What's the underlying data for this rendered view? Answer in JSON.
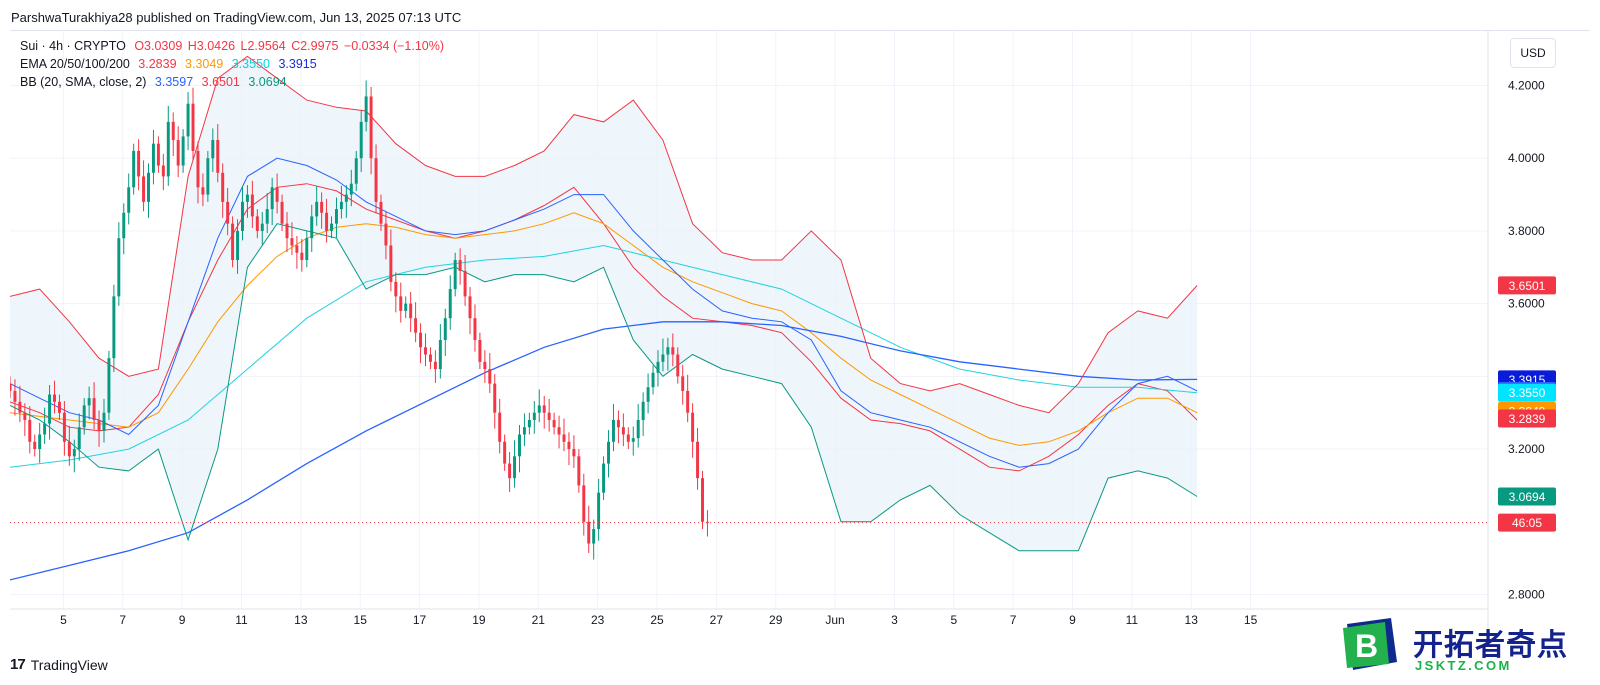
{
  "publisher": "ParshwaTurakhiya28 published on TradingView.com, Jun 13, 2025 07:13 UTC",
  "legend": {
    "symbol": "Sui · 4h · CRYPTO",
    "open": "O3.0309",
    "high": "H3.0426",
    "low": "L2.9564",
    "close": "C2.9975",
    "change": "−0.0334 (−1.10%)",
    "ema_label": "EMA 20/50/100/200",
    "ema20": "3.2839",
    "ema50": "3.3049",
    "ema100": "3.3550",
    "ema200": "3.3915",
    "bb_label": "BB (20, SMA, close, 2)",
    "bb_mid": "3.3597",
    "bb_upper": "3.6501",
    "bb_lower": "3.0694"
  },
  "currency_button": "USD",
  "brand": "TradingView",
  "watermark": {
    "title": "开拓者奇点",
    "url": "JSKTZ.COM"
  },
  "colors": {
    "up": "#089981",
    "down": "#f23645",
    "ema20": "#f23645",
    "ema50": "#ff9800",
    "ema100": "#22d3e0",
    "ema200": "#2962ff",
    "bb_upper": "#f23645",
    "bb_lower": "#089981",
    "bb_mid": "#2962ff",
    "bb_fill": "#eaf2fa"
  },
  "price_tags": [
    {
      "text": "3.6501",
      "value": 3.6501,
      "color": "#f23645"
    },
    {
      "text": "3.3915",
      "value": 3.3915,
      "color": "#0a1bd9"
    },
    {
      "text": "3.3597",
      "value": 3.3597,
      "color": "#2962ff"
    },
    {
      "text": "3.3550",
      "value": 3.355,
      "color": "#00e5ff"
    },
    {
      "text": "3.3049",
      "value": 3.3049,
      "color": "#ff9800"
    },
    {
      "text": "3.2839",
      "value": 3.2839,
      "color": "#f23645"
    },
    {
      "text": "3.0694",
      "value": 3.0694,
      "color": "#089981"
    },
    {
      "text": "46:05",
      "value": 2.9975,
      "color": "#f23645"
    }
  ],
  "chart_data": {
    "type": "candlestick",
    "title": "Sui · 4h · CRYPTO",
    "ylim": [
      2.76,
      4.35
    ],
    "y_ticks": [
      "2.8000",
      "3.2000",
      "3.4000",
      "3.6000",
      "3.8000",
      "4.0000",
      "4.2000"
    ],
    "x_ticks": [
      "5",
      "7",
      "9",
      "11",
      "13",
      "15",
      "17",
      "19",
      "21",
      "23",
      "25",
      "27",
      "29",
      "Jun",
      "3",
      "5",
      "7",
      "9",
      "11",
      "13",
      "15"
    ],
    "x_tick_day": [
      5,
      7,
      9,
      11,
      13,
      15,
      17,
      19,
      21,
      23,
      25,
      27,
      29,
      31,
      33,
      35,
      37,
      39,
      41,
      43,
      45
    ],
    "x_range_days": [
      3.2,
      53.0
    ],
    "candles_per_day": 6,
    "first_candle_day": 3.2,
    "closes": [
      3.36,
      3.33,
      3.3,
      3.28,
      3.22,
      3.2,
      3.24,
      3.27,
      3.35,
      3.33,
      3.3,
      3.22,
      3.18,
      3.2,
      3.26,
      3.32,
      3.34,
      3.28,
      3.25,
      3.3,
      3.45,
      3.62,
      3.78,
      3.85,
      3.92,
      4.02,
      3.95,
      3.88,
      3.96,
      4.04,
      3.98,
      3.95,
      4.1,
      4.05,
      3.98,
      4.06,
      4.15,
      4.02,
      3.92,
      3.9,
      4.0,
      4.05,
      3.96,
      3.88,
      3.82,
      3.72,
      3.8,
      3.88,
      3.9,
      3.84,
      3.8,
      3.82,
      3.86,
      3.92,
      3.88,
      3.82,
      3.78,
      3.76,
      3.74,
      3.72,
      3.78,
      3.84,
      3.88,
      3.85,
      3.8,
      3.82,
      3.86,
      3.88,
      3.9,
      3.93,
      4.0,
      4.1,
      4.17,
      4.0,
      3.88,
      3.82,
      3.76,
      3.66,
      3.62,
      3.58,
      3.6,
      3.56,
      3.52,
      3.48,
      3.46,
      3.44,
      3.42,
      3.5,
      3.56,
      3.64,
      3.72,
      3.69,
      3.62,
      3.56,
      3.5,
      3.44,
      3.42,
      3.38,
      3.3,
      3.22,
      3.16,
      3.12,
      3.18,
      3.24,
      3.26,
      3.28,
      3.3,
      3.32,
      3.3,
      3.28,
      3.26,
      3.24,
      3.22,
      3.2,
      3.18,
      3.1,
      3.0,
      2.94,
      2.98,
      3.08,
      3.16,
      3.22,
      3.28,
      3.26,
      3.24,
      3.22,
      3.23,
      3.28,
      3.33,
      3.37,
      3.41,
      3.44,
      3.46,
      3.48,
      3.46,
      3.4,
      3.36,
      3.3,
      3.22,
      3.12,
      3.0,
      2.9975
    ],
    "series": [
      {
        "name": "EMA 20",
        "color": "#f23645",
        "points": [
          [
            3.2,
            3.33
          ],
          [
            4.2,
            3.3
          ],
          [
            5.2,
            3.26
          ],
          [
            6.2,
            3.25
          ],
          [
            7.2,
            3.26
          ],
          [
            8.2,
            3.35
          ],
          [
            9.2,
            3.55
          ],
          [
            10.2,
            3.72
          ],
          [
            11.2,
            3.86
          ],
          [
            12.2,
            3.92
          ],
          [
            13.2,
            3.93
          ],
          [
            14.2,
            3.91
          ],
          [
            15.2,
            3.86
          ],
          [
            16.2,
            3.83
          ],
          [
            17.2,
            3.8
          ],
          [
            18.2,
            3.78
          ],
          [
            19.2,
            3.8
          ],
          [
            20.2,
            3.83
          ],
          [
            21.2,
            3.87
          ],
          [
            22.2,
            3.92
          ],
          [
            23.2,
            3.82
          ],
          [
            24.2,
            3.7
          ],
          [
            25.2,
            3.62
          ],
          [
            26.2,
            3.56
          ],
          [
            27.2,
            3.55
          ],
          [
            28.2,
            3.54
          ],
          [
            29.2,
            3.52
          ],
          [
            30.2,
            3.44
          ],
          [
            31.2,
            3.34
          ],
          [
            32.2,
            3.28
          ],
          [
            33.2,
            3.27
          ],
          [
            34.2,
            3.25
          ],
          [
            35.2,
            3.2
          ],
          [
            36.2,
            3.15
          ],
          [
            37.2,
            3.14
          ],
          [
            38.2,
            3.18
          ],
          [
            39.2,
            3.24
          ],
          [
            40.2,
            3.32
          ],
          [
            41.2,
            3.38
          ],
          [
            42.2,
            3.36
          ],
          [
            43.2,
            3.28
          ]
        ]
      },
      {
        "name": "EMA 50",
        "color": "#ff9800",
        "points": [
          [
            3.2,
            3.3
          ],
          [
            5.2,
            3.28
          ],
          [
            7.2,
            3.26
          ],
          [
            8.2,
            3.3
          ],
          [
            9.2,
            3.42
          ],
          [
            10.2,
            3.55
          ],
          [
            11.2,
            3.65
          ],
          [
            12.2,
            3.73
          ],
          [
            13.2,
            3.78
          ],
          [
            14.2,
            3.81
          ],
          [
            15.2,
            3.82
          ],
          [
            16.2,
            3.81
          ],
          [
            17.2,
            3.79
          ],
          [
            18.2,
            3.78
          ],
          [
            19.2,
            3.79
          ],
          [
            20.2,
            3.8
          ],
          [
            21.2,
            3.82
          ],
          [
            22.2,
            3.85
          ],
          [
            23.2,
            3.82
          ],
          [
            24.2,
            3.76
          ],
          [
            25.2,
            3.7
          ],
          [
            26.2,
            3.66
          ],
          [
            27.2,
            3.63
          ],
          [
            28.2,
            3.6
          ],
          [
            29.2,
            3.58
          ],
          [
            30.2,
            3.52
          ],
          [
            31.2,
            3.45
          ],
          [
            32.2,
            3.39
          ],
          [
            33.2,
            3.35
          ],
          [
            34.2,
            3.31
          ],
          [
            35.2,
            3.27
          ],
          [
            36.2,
            3.23
          ],
          [
            37.2,
            3.21
          ],
          [
            38.2,
            3.22
          ],
          [
            39.2,
            3.25
          ],
          [
            40.2,
            3.3
          ],
          [
            41.2,
            3.34
          ],
          [
            42.2,
            3.34
          ],
          [
            43.2,
            3.3
          ]
        ]
      },
      {
        "name": "EMA 100",
        "color": "#22d3e0",
        "points": [
          [
            3.2,
            3.15
          ],
          [
            5.2,
            3.17
          ],
          [
            7.2,
            3.2
          ],
          [
            9.2,
            3.28
          ],
          [
            11.2,
            3.42
          ],
          [
            13.2,
            3.56
          ],
          [
            15.2,
            3.66
          ],
          [
            17.2,
            3.7
          ],
          [
            19.2,
            3.72
          ],
          [
            21.2,
            3.73
          ],
          [
            23.2,
            3.76
          ],
          [
            25.2,
            3.72
          ],
          [
            27.2,
            3.68
          ],
          [
            29.2,
            3.64
          ],
          [
            31.2,
            3.56
          ],
          [
            33.2,
            3.48
          ],
          [
            35.2,
            3.42
          ],
          [
            37.2,
            3.39
          ],
          [
            39.2,
            3.37
          ],
          [
            41.2,
            3.37
          ],
          [
            43.2,
            3.355
          ]
        ]
      },
      {
        "name": "EMA 200",
        "color": "#2962ff",
        "points": [
          [
            3.2,
            2.84
          ],
          [
            5.2,
            2.88
          ],
          [
            7.2,
            2.92
          ],
          [
            9.2,
            2.97
          ],
          [
            11.2,
            3.06
          ],
          [
            13.2,
            3.16
          ],
          [
            15.2,
            3.25
          ],
          [
            17.2,
            3.33
          ],
          [
            19.2,
            3.41
          ],
          [
            21.2,
            3.48
          ],
          [
            23.2,
            3.53
          ],
          [
            25.2,
            3.55
          ],
          [
            27.2,
            3.55
          ],
          [
            29.2,
            3.54
          ],
          [
            31.2,
            3.51
          ],
          [
            33.2,
            3.47
          ],
          [
            35.2,
            3.44
          ],
          [
            37.2,
            3.42
          ],
          [
            39.2,
            3.4
          ],
          [
            41.2,
            3.39
          ],
          [
            43.2,
            3.3915
          ]
        ]
      },
      {
        "name": "BB basis",
        "color": "#2962ff",
        "points": [
          [
            3.2,
            3.38
          ],
          [
            4.2,
            3.34
          ],
          [
            5.2,
            3.3
          ],
          [
            6.2,
            3.28
          ],
          [
            7.2,
            3.24
          ],
          [
            8.2,
            3.32
          ],
          [
            9.2,
            3.55
          ],
          [
            10.2,
            3.78
          ],
          [
            11.2,
            3.95
          ],
          [
            12.2,
            4.0
          ],
          [
            13.2,
            3.98
          ],
          [
            14.2,
            3.94
          ],
          [
            15.2,
            3.88
          ],
          [
            16.2,
            3.84
          ],
          [
            17.2,
            3.8
          ],
          [
            18.2,
            3.79
          ],
          [
            19.2,
            3.8
          ],
          [
            20.2,
            3.83
          ],
          [
            21.2,
            3.86
          ],
          [
            22.2,
            3.9
          ],
          [
            23.2,
            3.9
          ],
          [
            24.2,
            3.8
          ],
          [
            25.2,
            3.72
          ],
          [
            26.2,
            3.64
          ],
          [
            27.2,
            3.58
          ],
          [
            28.2,
            3.56
          ],
          [
            29.2,
            3.55
          ],
          [
            30.2,
            3.5
          ],
          [
            31.2,
            3.36
          ],
          [
            32.2,
            3.3
          ],
          [
            33.2,
            3.28
          ],
          [
            34.2,
            3.26
          ],
          [
            35.2,
            3.22
          ],
          [
            36.2,
            3.18
          ],
          [
            37.2,
            3.15
          ],
          [
            38.2,
            3.16
          ],
          [
            39.2,
            3.2
          ],
          [
            40.2,
            3.3
          ],
          [
            41.2,
            3.38
          ],
          [
            42.2,
            3.4
          ],
          [
            43.2,
            3.36
          ]
        ]
      },
      {
        "name": "BB upper",
        "color": "#f23645",
        "points": [
          [
            3.2,
            3.62
          ],
          [
            4.2,
            3.64
          ],
          [
            5.2,
            3.55
          ],
          [
            6.2,
            3.45
          ],
          [
            7.2,
            3.4
          ],
          [
            8.2,
            3.42
          ],
          [
            9.2,
            3.95
          ],
          [
            10.2,
            4.22
          ],
          [
            11.2,
            4.28
          ],
          [
            12.2,
            4.22
          ],
          [
            13.2,
            4.16
          ],
          [
            14.2,
            4.14
          ],
          [
            15.2,
            4.13
          ],
          [
            16.2,
            4.04
          ],
          [
            17.2,
            3.98
          ],
          [
            18.2,
            3.95
          ],
          [
            19.2,
            3.95
          ],
          [
            20.2,
            3.98
          ],
          [
            21.2,
            4.02
          ],
          [
            22.2,
            4.12
          ],
          [
            23.2,
            4.1
          ],
          [
            24.2,
            4.16
          ],
          [
            25.2,
            4.05
          ],
          [
            26.2,
            3.82
          ],
          [
            27.2,
            3.74
          ],
          [
            28.2,
            3.72
          ],
          [
            29.2,
            3.72
          ],
          [
            30.2,
            3.8
          ],
          [
            31.2,
            3.72
          ],
          [
            32.2,
            3.45
          ],
          [
            33.2,
            3.38
          ],
          [
            34.2,
            3.36
          ],
          [
            35.2,
            3.38
          ],
          [
            36.2,
            3.35
          ],
          [
            37.2,
            3.32
          ],
          [
            38.2,
            3.3
          ],
          [
            39.2,
            3.38
          ],
          [
            40.2,
            3.52
          ],
          [
            41.2,
            3.58
          ],
          [
            42.2,
            3.56
          ],
          [
            43.2,
            3.65
          ]
        ]
      },
      {
        "name": "BB lower",
        "color": "#089981",
        "points": [
          [
            3.2,
            3.32
          ],
          [
            4.2,
            3.28
          ],
          [
            5.2,
            3.22
          ],
          [
            6.2,
            3.15
          ],
          [
            7.2,
            3.14
          ],
          [
            8.2,
            3.2
          ],
          [
            9.2,
            2.95
          ],
          [
            10.2,
            3.2
          ],
          [
            11.2,
            3.7
          ],
          [
            12.2,
            3.82
          ],
          [
            13.2,
            3.8
          ],
          [
            14.2,
            3.78
          ],
          [
            15.2,
            3.64
          ],
          [
            16.2,
            3.68
          ],
          [
            17.2,
            3.68
          ],
          [
            18.2,
            3.7
          ],
          [
            19.2,
            3.66
          ],
          [
            20.2,
            3.68
          ],
          [
            21.2,
            3.68
          ],
          [
            22.2,
            3.66
          ],
          [
            23.2,
            3.7
          ],
          [
            24.2,
            3.5
          ],
          [
            25.2,
            3.4
          ],
          [
            26.2,
            3.46
          ],
          [
            27.2,
            3.42
          ],
          [
            28.2,
            3.4
          ],
          [
            29.2,
            3.38
          ],
          [
            30.2,
            3.26
          ],
          [
            31.2,
            3.0
          ],
          [
            32.2,
            3.0
          ],
          [
            33.2,
            3.06
          ],
          [
            34.2,
            3.1
          ],
          [
            35.2,
            3.02
          ],
          [
            36.2,
            2.97
          ],
          [
            37.2,
            2.92
          ],
          [
            38.2,
            2.92
          ],
          [
            39.2,
            2.92
          ],
          [
            40.2,
            3.12
          ],
          [
            41.2,
            3.14
          ],
          [
            42.2,
            3.12
          ],
          [
            43.2,
            3.0694
          ]
        ]
      }
    ],
    "last_price": 2.9975
  }
}
